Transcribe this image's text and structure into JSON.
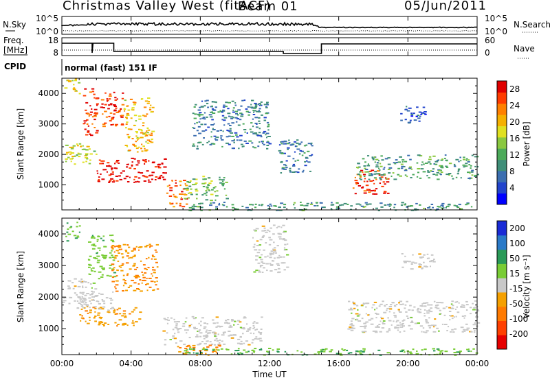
{
  "header": {
    "station": "Christmas Valley West (fitACF)",
    "beam": "Beam 01",
    "date": "05/Jun/2011"
  },
  "control_panels": {
    "nsky_label": "N.Sky",
    "nsearch_label": "N.Search",
    "noise_ticks": [
      "10^5",
      "10^0"
    ],
    "freq_label_line1": "Freq.",
    "freq_label_line2": "[MHz]",
    "freq_ticks": [
      "18",
      "8"
    ],
    "nave_label": "Nave",
    "nave_ticks": [
      "60",
      "0"
    ],
    "cpid_label": "CPID",
    "cpid_value": "normal (fast) 151 IF"
  },
  "chart_data": [
    {
      "type": "heatmap",
      "name": "power",
      "xlabel": "Time UT",
      "ylabel": "Slant Range [km]",
      "x_ticks": [
        "00:00",
        "04:00",
        "08:00",
        "12:00",
        "16:00",
        "20:00",
        "00:00"
      ],
      "xlim_hours": [
        0,
        24
      ],
      "y_ticks": [
        1000,
        2000,
        3000,
        4000
      ],
      "ylim": [
        180,
        4500
      ],
      "colorbar_label": "Power [dB]",
      "colorbar_ticks": [
        4,
        8,
        12,
        16,
        20,
        24,
        28
      ],
      "colorbar_range": [
        0,
        30
      ],
      "colormap": [
        "#0000ff",
        "#2244cc",
        "#3b6eb0",
        "#3f8e78",
        "#4caa5a",
        "#8ac840",
        "#e0e020",
        "#f5b000",
        "#ff8000",
        "#ff3c00",
        "#e00000"
      ],
      "echo_regions": [
        {
          "t": [
            0.0,
            2.0
          ],
          "range": [
            1700,
            2400
          ],
          "value": 17
        },
        {
          "t": [
            0.1,
            1.0
          ],
          "range": [
            4000,
            4500
          ],
          "value": 18
        },
        {
          "t": [
            1.2,
            2.0
          ],
          "range": [
            2600,
            4200
          ],
          "value": 27
        },
        {
          "t": [
            2.0,
            6.0
          ],
          "range": [
            1100,
            1900
          ],
          "value": 29
        },
        {
          "t": [
            2.2,
            3.5
          ],
          "range": [
            2900,
            4100
          ],
          "value": 26
        },
        {
          "t": [
            3.5,
            5.2
          ],
          "range": [
            2100,
            3900
          ],
          "value": 20
        },
        {
          "t": [
            6.0,
            7.2
          ],
          "range": [
            300,
            1200
          ],
          "value": 24
        },
        {
          "t": [
            7.0,
            9.5
          ],
          "range": [
            500,
            1300
          ],
          "value": 14
        },
        {
          "t": [
            7.5,
            12.0
          ],
          "range": [
            2200,
            3800
          ],
          "value": 8
        },
        {
          "t": [
            12.5,
            14.5
          ],
          "range": [
            1400,
            2500
          ],
          "value": 8
        },
        {
          "t": [
            16.8,
            18.8
          ],
          "range": [
            700,
            1500
          ],
          "value": 27
        },
        {
          "t": [
            17.0,
            24.0
          ],
          "range": [
            1200,
            2000
          ],
          "value": 11
        },
        {
          "t": [
            19.5,
            21.0
          ],
          "range": [
            3000,
            3600
          ],
          "value": 6
        },
        {
          "t": [
            7.0,
            24.0
          ],
          "range": [
            180,
            450
          ],
          "value": 10
        }
      ]
    },
    {
      "type": "heatmap",
      "name": "velocity",
      "xlabel": "Time UT",
      "ylabel": "Slant Range [km]",
      "x_ticks": [
        "00:00",
        "04:00",
        "08:00",
        "12:00",
        "16:00",
        "20:00",
        "00:00"
      ],
      "xlim_hours": [
        0,
        24
      ],
      "y_ticks": [
        1000,
        2000,
        3000,
        4000
      ],
      "ylim": [
        180,
        4500
      ],
      "colorbar_label": "Velocity [m s⁻¹]",
      "colorbar_ticks": [
        200,
        100,
        50,
        15,
        -15,
        -50,
        -100,
        -200
      ],
      "colorbar_range": [
        -250,
        250
      ],
      "colormap": [
        "#1a2bd6",
        "#2a7ac8",
        "#2a9a58",
        "#79cc35",
        "#c8c8c8",
        "#f5a000",
        "#ff7a00",
        "#ff4000",
        "#e60000"
      ],
      "echo_regions": [
        {
          "t": [
            0.0,
            2.0
          ],
          "range": [
            1800,
            2600
          ],
          "value": 0
        },
        {
          "t": [
            0.2,
            1.0
          ],
          "range": [
            3800,
            4400
          ],
          "value": 60
        },
        {
          "t": [
            1.5,
            3.0
          ],
          "range": [
            2600,
            4000
          ],
          "value": 60
        },
        {
          "t": [
            2.8,
            5.5
          ],
          "range": [
            2200,
            3700
          ],
          "value": -80
        },
        {
          "t": [
            1.0,
            4.5
          ],
          "range": [
            1100,
            1700
          ],
          "value": -60
        },
        {
          "t": [
            0.8,
            3.0
          ],
          "range": [
            1600,
            2200
          ],
          "value": 0
        },
        {
          "t": [
            5.8,
            11.5
          ],
          "range": [
            500,
            1400
          ],
          "value": 0
        },
        {
          "t": [
            6.5,
            9.5
          ],
          "range": [
            180,
            500
          ],
          "value": -90
        },
        {
          "t": [
            11.0,
            13.0
          ],
          "range": [
            2800,
            4300
          ],
          "value": 0
        },
        {
          "t": [
            16.5,
            24.0
          ],
          "range": [
            900,
            1900
          ],
          "value": 0
        },
        {
          "t": [
            19.5,
            21.5
          ],
          "range": [
            2900,
            3400
          ],
          "value": 0
        },
        {
          "t": [
            7.0,
            24.0
          ],
          "range": [
            180,
            400
          ],
          "value": 70
        }
      ]
    }
  ]
}
